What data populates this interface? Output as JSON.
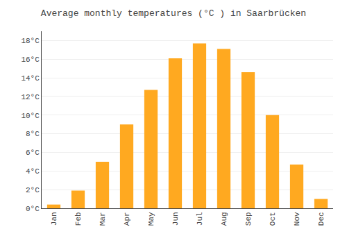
{
  "chart_data": {
    "type": "bar",
    "title": "Average monthly temperatures (°C ) in Saarbrücken",
    "categories": [
      "Jan",
      "Feb",
      "Mar",
      "Apr",
      "May",
      "Jun",
      "Jul",
      "Aug",
      "Sep",
      "Oct",
      "Nov",
      "Dec"
    ],
    "values": [
      0.4,
      1.9,
      5.0,
      9.0,
      12.7,
      16.1,
      17.7,
      17.1,
      14.6,
      10.0,
      4.7,
      1.0
    ],
    "color": "#FFA920",
    "ylim": [
      0,
      19.0
    ],
    "yticks": [
      {
        "value": 0,
        "label": "0°C"
      },
      {
        "value": 2,
        "label": "2°C"
      },
      {
        "value": 4,
        "label": "4°C"
      },
      {
        "value": 6,
        "label": "6°C"
      },
      {
        "value": 8,
        "label": "8°C"
      },
      {
        "value": 10,
        "label": "10°C"
      },
      {
        "value": 12,
        "label": "12°C"
      },
      {
        "value": 14,
        "label": "14°C"
      },
      {
        "value": 16,
        "label": "16°C"
      },
      {
        "value": 18,
        "label": "18°C"
      }
    ],
    "grid": true
  }
}
